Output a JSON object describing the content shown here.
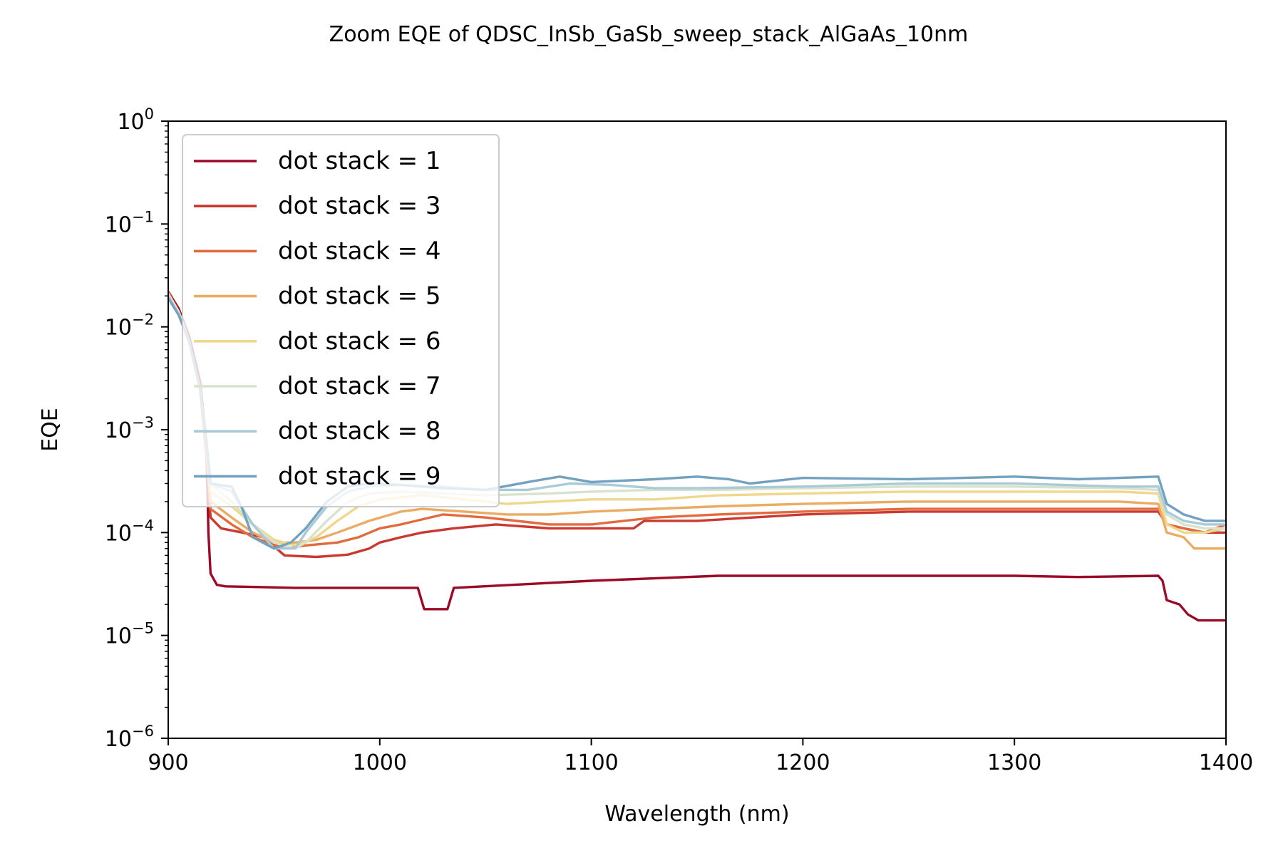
{
  "chart_data": {
    "type": "line",
    "title": "Zoom EQE of QDSC_InSb_GaSb_sweep_stack_AlGaAs_10nm",
    "xlabel": "Wavelength (nm)",
    "ylabel": "EQE",
    "xlim": [
      900,
      1400
    ],
    "ylim": [
      1e-06,
      1
    ],
    "yscale": "log",
    "xticks": [
      900,
      1000,
      1100,
      1200,
      1300,
      1400
    ],
    "yticks": [
      {
        "value": 1e-06,
        "base": "10",
        "exp": "−6"
      },
      {
        "value": 1e-05,
        "base": "10",
        "exp": "−5"
      },
      {
        "value": 0.0001,
        "base": "10",
        "exp": "−4"
      },
      {
        "value": 0.001,
        "base": "10",
        "exp": "−3"
      },
      {
        "value": 0.01,
        "base": "10",
        "exp": "−2"
      },
      {
        "value": 0.1,
        "base": "10",
        "exp": "−1"
      },
      {
        "value": 1,
        "base": "10",
        "exp": "0"
      }
    ],
    "grid": false,
    "legend_position": "upper-left",
    "series": [
      {
        "name": "dot stack = 1",
        "color": "#9b0a26",
        "points": [
          [
            900,
            0.022
          ],
          [
            905,
            0.015
          ],
          [
            910,
            0.008
          ],
          [
            915,
            0.003
          ],
          [
            918,
            0.0008
          ],
          [
            919,
            0.0001
          ],
          [
            920,
            4e-05
          ],
          [
            923,
            3.1e-05
          ],
          [
            927,
            3e-05
          ],
          [
            960,
            2.9e-05
          ],
          [
            1000,
            2.9e-05
          ],
          [
            1018,
            2.9e-05
          ],
          [
            1021,
            1.8e-05
          ],
          [
            1032,
            1.8e-05
          ],
          [
            1035,
            2.9e-05
          ],
          [
            1100,
            3.4e-05
          ],
          [
            1160,
            3.8e-05
          ],
          [
            1200,
            3.8e-05
          ],
          [
            1300,
            3.8e-05
          ],
          [
            1330,
            3.7e-05
          ],
          [
            1368,
            3.8e-05
          ],
          [
            1370,
            3.4e-05
          ],
          [
            1372,
            2.2e-05
          ],
          [
            1378,
            2e-05
          ],
          [
            1382,
            1.6e-05
          ],
          [
            1387,
            1.4e-05
          ],
          [
            1400,
            1.4e-05
          ]
        ]
      },
      {
        "name": "dot stack = 3",
        "color": "#ca3930",
        "points": [
          [
            900,
            0.022
          ],
          [
            905,
            0.014
          ],
          [
            910,
            0.007
          ],
          [
            915,
            0.0025
          ],
          [
            918,
            0.0006
          ],
          [
            920,
            0.00014
          ],
          [
            925,
            0.00011
          ],
          [
            935,
            0.0001
          ],
          [
            945,
            9e-05
          ],
          [
            955,
            6e-05
          ],
          [
            970,
            5.8e-05
          ],
          [
            985,
            6.1e-05
          ],
          [
            995,
            7e-05
          ],
          [
            1000,
            8e-05
          ],
          [
            1010,
            9e-05
          ],
          [
            1020,
            0.0001
          ],
          [
            1035,
            0.00011
          ],
          [
            1055,
            0.00012
          ],
          [
            1080,
            0.00011
          ],
          [
            1100,
            0.00011
          ],
          [
            1120,
            0.00011
          ],
          [
            1125,
            0.00013
          ],
          [
            1150,
            0.00013
          ],
          [
            1200,
            0.00015
          ],
          [
            1250,
            0.00016
          ],
          [
            1300,
            0.00016
          ],
          [
            1350,
            0.00016
          ],
          [
            1368,
            0.00016
          ],
          [
            1372,
            0.00012
          ],
          [
            1380,
            0.00011
          ],
          [
            1390,
            0.0001
          ],
          [
            1400,
            0.0001
          ]
        ]
      },
      {
        "name": "dot stack = 4",
        "color": "#e26a3f",
        "points": [
          [
            900,
            0.021
          ],
          [
            905,
            0.014
          ],
          [
            910,
            0.007
          ],
          [
            915,
            0.0025
          ],
          [
            918,
            0.0006
          ],
          [
            920,
            0.00017
          ],
          [
            930,
            0.00012
          ],
          [
            940,
            9e-05
          ],
          [
            955,
            7e-05
          ],
          [
            965,
            7.5e-05
          ],
          [
            980,
            8e-05
          ],
          [
            990,
            9e-05
          ],
          [
            1000,
            0.00011
          ],
          [
            1010,
            0.00012
          ],
          [
            1030,
            0.00015
          ],
          [
            1050,
            0.00014
          ],
          [
            1080,
            0.00012
          ],
          [
            1100,
            0.00012
          ],
          [
            1130,
            0.00014
          ],
          [
            1160,
            0.00015
          ],
          [
            1200,
            0.00016
          ],
          [
            1250,
            0.00017
          ],
          [
            1300,
            0.00017
          ],
          [
            1350,
            0.00017
          ],
          [
            1368,
            0.00017
          ],
          [
            1372,
            0.00012
          ],
          [
            1380,
            0.00011
          ],
          [
            1390,
            0.0001
          ],
          [
            1400,
            0.00012
          ]
        ]
      },
      {
        "name": "dot stack = 5",
        "color": "#ecab63",
        "points": [
          [
            900,
            0.021
          ],
          [
            905,
            0.014
          ],
          [
            910,
            0.007
          ],
          [
            915,
            0.0025
          ],
          [
            918,
            0.0007
          ],
          [
            920,
            0.0002
          ],
          [
            930,
            0.00014
          ],
          [
            940,
            0.0001
          ],
          [
            950,
            8e-05
          ],
          [
            960,
            8e-05
          ],
          [
            970,
            8.5e-05
          ],
          [
            980,
            0.0001
          ],
          [
            995,
            0.00013
          ],
          [
            1010,
            0.00016
          ],
          [
            1020,
            0.00017
          ],
          [
            1040,
            0.00016
          ],
          [
            1060,
            0.00015
          ],
          [
            1080,
            0.00015
          ],
          [
            1100,
            0.00016
          ],
          [
            1130,
            0.00017
          ],
          [
            1160,
            0.00018
          ],
          [
            1200,
            0.00019
          ],
          [
            1250,
            0.0002
          ],
          [
            1300,
            0.0002
          ],
          [
            1350,
            0.0002
          ],
          [
            1368,
            0.00019
          ],
          [
            1372,
            0.0001
          ],
          [
            1380,
            9e-05
          ],
          [
            1385,
            7e-05
          ],
          [
            1400,
            7e-05
          ]
        ]
      },
      {
        "name": "dot stack = 6",
        "color": "#efd88d",
        "points": [
          [
            900,
            0.021
          ],
          [
            905,
            0.014
          ],
          [
            910,
            0.007
          ],
          [
            915,
            0.0025
          ],
          [
            918,
            0.0008
          ],
          [
            920,
            0.00025
          ],
          [
            930,
            0.00018
          ],
          [
            940,
            0.00012
          ],
          [
            950,
            8.5e-05
          ],
          [
            960,
            7.5e-05
          ],
          [
            970,
            9e-05
          ],
          [
            980,
            0.00013
          ],
          [
            990,
            0.00018
          ],
          [
            1000,
            0.00021
          ],
          [
            1020,
            0.00023
          ],
          [
            1040,
            0.00021
          ],
          [
            1060,
            0.00019
          ],
          [
            1080,
            0.0002
          ],
          [
            1100,
            0.00021
          ],
          [
            1130,
            0.00021
          ],
          [
            1160,
            0.00023
          ],
          [
            1200,
            0.00024
          ],
          [
            1250,
            0.00025
          ],
          [
            1300,
            0.00025
          ],
          [
            1350,
            0.00025
          ],
          [
            1368,
            0.00024
          ],
          [
            1372,
            0.00012
          ],
          [
            1380,
            0.0001
          ],
          [
            1390,
            0.0001
          ],
          [
            1400,
            0.00011
          ]
        ]
      },
      {
        "name": "dot stack = 7",
        "color": "#d9e2cc",
        "points": [
          [
            900,
            0.021
          ],
          [
            905,
            0.014
          ],
          [
            910,
            0.007
          ],
          [
            915,
            0.0025
          ],
          [
            918,
            0.0008
          ],
          [
            920,
            0.0003
          ],
          [
            930,
            0.0002
          ],
          [
            940,
            0.00012
          ],
          [
            950,
            8e-05
          ],
          [
            960,
            7e-05
          ],
          [
            965,
            8e-05
          ],
          [
            975,
            0.00013
          ],
          [
            985,
            0.0002
          ],
          [
            995,
            0.00024
          ],
          [
            1010,
            0.00025
          ],
          [
            1030,
            0.00024
          ],
          [
            1050,
            0.00023
          ],
          [
            1080,
            0.00024
          ],
          [
            1100,
            0.00025
          ],
          [
            1130,
            0.00026
          ],
          [
            1160,
            0.00026
          ],
          [
            1200,
            0.00027
          ],
          [
            1250,
            0.00028
          ],
          [
            1300,
            0.00028
          ],
          [
            1350,
            0.00027
          ],
          [
            1368,
            0.00026
          ],
          [
            1372,
            0.00015
          ],
          [
            1380,
            0.00012
          ],
          [
            1390,
            0.00011
          ],
          [
            1400,
            0.00011
          ]
        ]
      },
      {
        "name": "dot stack = 8",
        "color": "#a9cad7",
        "points": [
          [
            900,
            0.02
          ],
          [
            905,
            0.013
          ],
          [
            910,
            0.007
          ],
          [
            915,
            0.0025
          ],
          [
            918,
            0.0008
          ],
          [
            920,
            0.0003
          ],
          [
            930,
            0.00025
          ],
          [
            940,
            0.00012
          ],
          [
            950,
            7e-05
          ],
          [
            960,
            7e-05
          ],
          [
            965,
            0.0001
          ],
          [
            975,
            0.00018
          ],
          [
            985,
            0.00025
          ],
          [
            995,
            0.00028
          ],
          [
            1010,
            0.00029
          ],
          [
            1030,
            0.00028
          ],
          [
            1050,
            0.00026
          ],
          [
            1070,
            0.00026
          ],
          [
            1090,
            0.0003
          ],
          [
            1110,
            0.00029
          ],
          [
            1130,
            0.00027
          ],
          [
            1150,
            0.00027
          ],
          [
            1200,
            0.00028
          ],
          [
            1250,
            0.0003
          ],
          [
            1300,
            0.0003
          ],
          [
            1350,
            0.00028
          ],
          [
            1368,
            0.00028
          ],
          [
            1372,
            0.00016
          ],
          [
            1380,
            0.00013
          ],
          [
            1390,
            0.00012
          ],
          [
            1400,
            0.00012
          ]
        ]
      },
      {
        "name": "dot stack = 9",
        "color": "#72a2c0",
        "points": [
          [
            900,
            0.019
          ],
          [
            905,
            0.013
          ],
          [
            910,
            0.007
          ],
          [
            915,
            0.0025
          ],
          [
            918,
            0.0008
          ],
          [
            920,
            0.0003
          ],
          [
            930,
            0.00028
          ],
          [
            935,
            0.00017
          ],
          [
            940,
            9e-05
          ],
          [
            950,
            7e-05
          ],
          [
            958,
            8e-05
          ],
          [
            965,
            0.00011
          ],
          [
            975,
            0.0002
          ],
          [
            985,
            0.00028
          ],
          [
            995,
            0.0003
          ],
          [
            1010,
            0.00029
          ],
          [
            1030,
            0.00027
          ],
          [
            1050,
            0.00026
          ],
          [
            1070,
            0.00031
          ],
          [
            1085,
            0.00035
          ],
          [
            1100,
            0.00031
          ],
          [
            1130,
            0.00033
          ],
          [
            1150,
            0.00035
          ],
          [
            1165,
            0.00033
          ],
          [
            1175,
            0.0003
          ],
          [
            1200,
            0.00034
          ],
          [
            1250,
            0.00033
          ],
          [
            1300,
            0.00035
          ],
          [
            1330,
            0.00033
          ],
          [
            1368,
            0.00035
          ],
          [
            1372,
            0.00019
          ],
          [
            1380,
            0.00015
          ],
          [
            1390,
            0.00013
          ],
          [
            1400,
            0.00013
          ]
        ]
      }
    ]
  }
}
